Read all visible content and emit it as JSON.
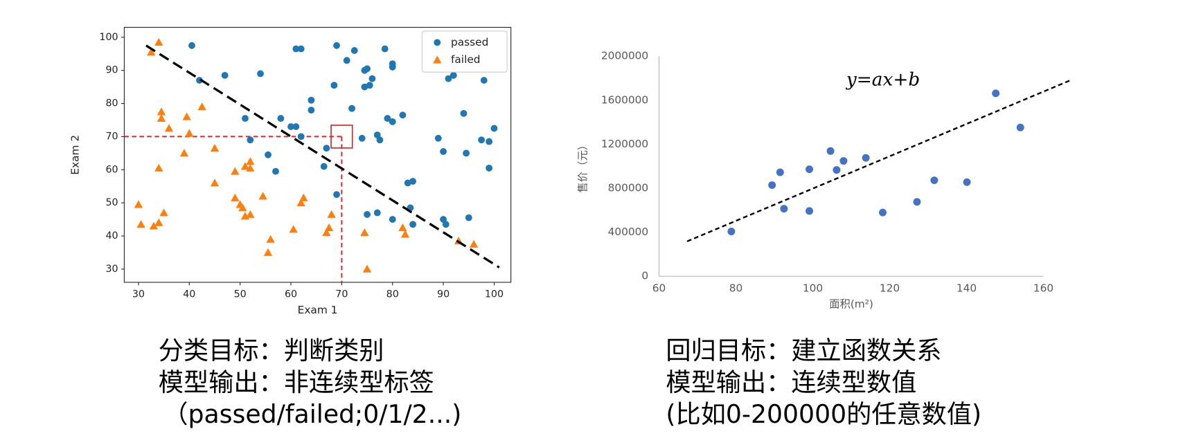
{
  "chart_data": [
    {
      "type": "scatter",
      "xlabel": "Exam 1",
      "ylabel": "Exam 2",
      "xlim": [
        27.2,
        103.3
      ],
      "ylim": [
        26,
        103
      ],
      "xticks": [
        30,
        40,
        50,
        60,
        70,
        80,
        90,
        100
      ],
      "yticks": [
        30,
        40,
        50,
        60,
        70,
        80,
        90,
        100
      ],
      "legend": "upper right",
      "frame": "box",
      "series": [
        {
          "name": "passed",
          "color": "#1f77b4",
          "marker": "circle",
          "x": [
            40.5,
            47,
            42,
            54,
            61,
            62,
            69,
            71,
            72.5,
            78.5,
            74.5,
            75,
            76,
            80,
            80,
            68.5,
            74.5,
            75.5,
            64,
            64,
            72,
            51,
            58,
            60,
            61,
            52,
            62,
            74,
            77,
            77.5,
            79,
            80,
            82,
            67,
            55.5,
            57,
            66.5,
            69,
            83,
            84,
            89,
            90,
            92,
            91,
            94,
            98,
            94.5,
            97.5,
            99,
            100,
            99,
            75,
            77,
            80,
            83.5,
            84,
            90,
            90.5,
            95
          ],
          "y": [
            97.5,
            88.5,
            87,
            89,
            96.5,
            96.5,
            97.5,
            93,
            96,
            96.5,
            90,
            90.5,
            87.5,
            92,
            91,
            85.5,
            85,
            85.5,
            81,
            78,
            78.5,
            75.5,
            75.5,
            73,
            73,
            69,
            70,
            69.5,
            70.5,
            69,
            75.5,
            74.5,
            76.5,
            66.5,
            64.5,
            59.5,
            61,
            52.5,
            56,
            56.5,
            69.5,
            65.5,
            88.5,
            87.5,
            77,
            87,
            65,
            69,
            68.5,
            72.5,
            60.5,
            46.5,
            47,
            45,
            48.5,
            43.5,
            45,
            43.5,
            45.5
          ]
        },
        {
          "name": "failed",
          "color": "#ff7f0e",
          "marker": "triangle",
          "x": [
            32.5,
            34,
            42.5,
            34.5,
            34.5,
            39.5,
            40,
            36,
            34,
            39,
            45,
            45,
            30,
            30.5,
            33,
            34,
            35,
            49,
            51,
            52,
            52,
            49,
            50,
            50.5,
            51,
            52,
            54.5,
            55.5,
            56,
            60.5,
            62,
            62.5,
            67,
            67.5,
            68,
            74.5,
            75,
            82,
            82.5,
            93,
            96
          ],
          "y": [
            95.5,
            98.5,
            79,
            77.5,
            75.5,
            76,
            71,
            72.5,
            60.5,
            65,
            66.5,
            56,
            49.5,
            43.5,
            43,
            44,
            47,
            59.5,
            61,
            62.5,
            60.5,
            51.5,
            49.5,
            48.5,
            46,
            46.5,
            52,
            35,
            39,
            42,
            50,
            51.5,
            41,
            42.5,
            46.5,
            41,
            30,
            42.5,
            40.5,
            38.5,
            37.5
          ]
        }
      ],
      "decision_line": {
        "color": "#000000",
        "x": [
          31.5,
          101
        ],
        "y": [
          97.5,
          30.5
        ]
      },
      "reference": {
        "color": "#d62728",
        "x": 70,
        "y": 70
      }
    },
    {
      "type": "scatter",
      "xlabel": "面积(m²)",
      "ylabel": "售价（元）",
      "annotation": "y=ax+b",
      "xlim": [
        60,
        160
      ],
      "ylim": [
        0,
        2000000
      ],
      "xticks": [
        60,
        80,
        100,
        120,
        140,
        160
      ],
      "yticks": [
        0,
        400000,
        800000,
        1200000,
        1600000,
        2000000
      ],
      "frame": "axes",
      "series": [
        {
          "color": "#4472c4",
          "marker": "circle",
          "x": [
            78.8,
            89.4,
            91.5,
            92.5,
            99.1,
            99.1,
            104.6,
            106.2,
            108,
            113.8,
            118.2,
            127.1,
            131.6,
            140.1,
            147.6,
            154
          ],
          "y": [
            407000,
            828000,
            945000,
            614000,
            972000,
            593000,
            1138000,
            966000,
            1048000,
            1076000,
            579000,
            676000,
            872000,
            855000,
            1662000,
            1352000
          ]
        }
      ],
      "trend_line": {
        "color": "#000000",
        "x": [
          67.3,
          166.9
        ],
        "y": [
          317000,
          1779000
        ]
      }
    }
  ],
  "captions": [
    {
      "lines": [
        "分类目标：判断类别",
        "模型输出：非连续型标签",
        "（passed/failed;0/1/2...)"
      ]
    },
    {
      "lines": [
        "回归目标：建立函数关系",
        "模型输出：连续型数值",
        "(比如0-200000的任意数值)"
      ]
    }
  ]
}
